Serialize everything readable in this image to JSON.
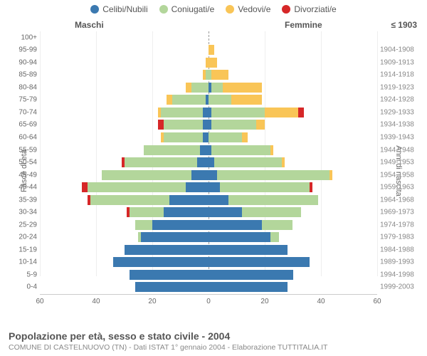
{
  "legend": [
    {
      "label": "Celibi/Nubili",
      "color": "#3b79b0"
    },
    {
      "label": "Coniugati/e",
      "color": "#b3d69b"
    },
    {
      "label": "Vedovi/e",
      "color": "#f9c557"
    },
    {
      "label": "Divorziati/e",
      "color": "#d62728"
    }
  ],
  "headers": {
    "male": "Maschi",
    "female": "Femmine",
    "year_lead": "≤ 1903"
  },
  "y_left_title": "Fasce di età",
  "y_right_title": "Anni di nascita",
  "title": "Popolazione per età, sesso e stato civile - 2004",
  "subtitle": "COMUNE DI CASTELNUOVO (TN) - Dati ISTAT 1° gennaio 2004 - Elaborazione TUTTITALIA.IT",
  "xaxis": {
    "max": 60,
    "ticks": [
      60,
      40,
      20,
      0,
      20,
      40,
      60
    ]
  },
  "colors": {
    "grid": "#eeeeee",
    "axis": "#cccccc",
    "text": "#666666",
    "bg": "#ffffff"
  },
  "rows": [
    {
      "age": "100+",
      "year": "≤ 1903",
      "male": [
        0,
        0,
        0,
        0
      ],
      "female": [
        0,
        0,
        0,
        0
      ]
    },
    {
      "age": "95-99",
      "year": "1904-1908",
      "male": [
        0,
        0,
        0,
        0
      ],
      "female": [
        0,
        0,
        2,
        0
      ]
    },
    {
      "age": "90-94",
      "year": "1909-1913",
      "male": [
        0,
        0,
        1,
        0
      ],
      "female": [
        0,
        0,
        3,
        0
      ]
    },
    {
      "age": "85-89",
      "year": "1914-1918",
      "male": [
        0,
        1,
        1,
        0
      ],
      "female": [
        0,
        1,
        6,
        0
      ]
    },
    {
      "age": "80-84",
      "year": "1919-1923",
      "male": [
        0,
        6,
        2,
        0
      ],
      "female": [
        1,
        4,
        14,
        0
      ]
    },
    {
      "age": "75-79",
      "year": "1924-1928",
      "male": [
        1,
        12,
        2,
        0
      ],
      "female": [
        0,
        8,
        11,
        0
      ]
    },
    {
      "age": "70-74",
      "year": "1929-1933",
      "male": [
        2,
        15,
        1,
        0
      ],
      "female": [
        1,
        19,
        12,
        2
      ]
    },
    {
      "age": "65-69",
      "year": "1934-1938",
      "male": [
        2,
        14,
        0,
        2
      ],
      "female": [
        1,
        16,
        3,
        0
      ]
    },
    {
      "age": "60-64",
      "year": "1939-1943",
      "male": [
        2,
        14,
        1,
        0
      ],
      "female": [
        0,
        12,
        2,
        0
      ]
    },
    {
      "age": "55-59",
      "year": "1944-1948",
      "male": [
        3,
        20,
        0,
        0
      ],
      "female": [
        1,
        21,
        1,
        0
      ]
    },
    {
      "age": "50-54",
      "year": "1949-1953",
      "male": [
        4,
        26,
        0,
        1
      ],
      "female": [
        2,
        24,
        1,
        0
      ]
    },
    {
      "age": "45-49",
      "year": "1954-1958",
      "male": [
        6,
        32,
        0,
        0
      ],
      "female": [
        3,
        40,
        1,
        0
      ]
    },
    {
      "age": "40-44",
      "year": "1959-1963",
      "male": [
        8,
        35,
        0,
        2
      ],
      "female": [
        4,
        32,
        0,
        1
      ]
    },
    {
      "age": "35-39",
      "year": "1964-1968",
      "male": [
        14,
        28,
        0,
        1
      ],
      "female": [
        7,
        32,
        0,
        0
      ]
    },
    {
      "age": "30-34",
      "year": "1969-1973",
      "male": [
        16,
        12,
        0,
        1
      ],
      "female": [
        12,
        21,
        0,
        0
      ]
    },
    {
      "age": "25-29",
      "year": "1974-1978",
      "male": [
        20,
        6,
        0,
        0
      ],
      "female": [
        19,
        11,
        0,
        0
      ]
    },
    {
      "age": "20-24",
      "year": "1979-1983",
      "male": [
        24,
        1,
        0,
        0
      ],
      "female": [
        22,
        3,
        0,
        0
      ]
    },
    {
      "age": "15-19",
      "year": "1984-1988",
      "male": [
        30,
        0,
        0,
        0
      ],
      "female": [
        28,
        0,
        0,
        0
      ]
    },
    {
      "age": "10-14",
      "year": "1989-1993",
      "male": [
        34,
        0,
        0,
        0
      ],
      "female": [
        36,
        0,
        0,
        0
      ]
    },
    {
      "age": "5-9",
      "year": "1994-1998",
      "male": [
        28,
        0,
        0,
        0
      ],
      "female": [
        30,
        0,
        0,
        0
      ]
    },
    {
      "age": "0-4",
      "year": "1999-2003",
      "male": [
        26,
        0,
        0,
        0
      ],
      "female": [
        28,
        0,
        0,
        0
      ]
    }
  ]
}
